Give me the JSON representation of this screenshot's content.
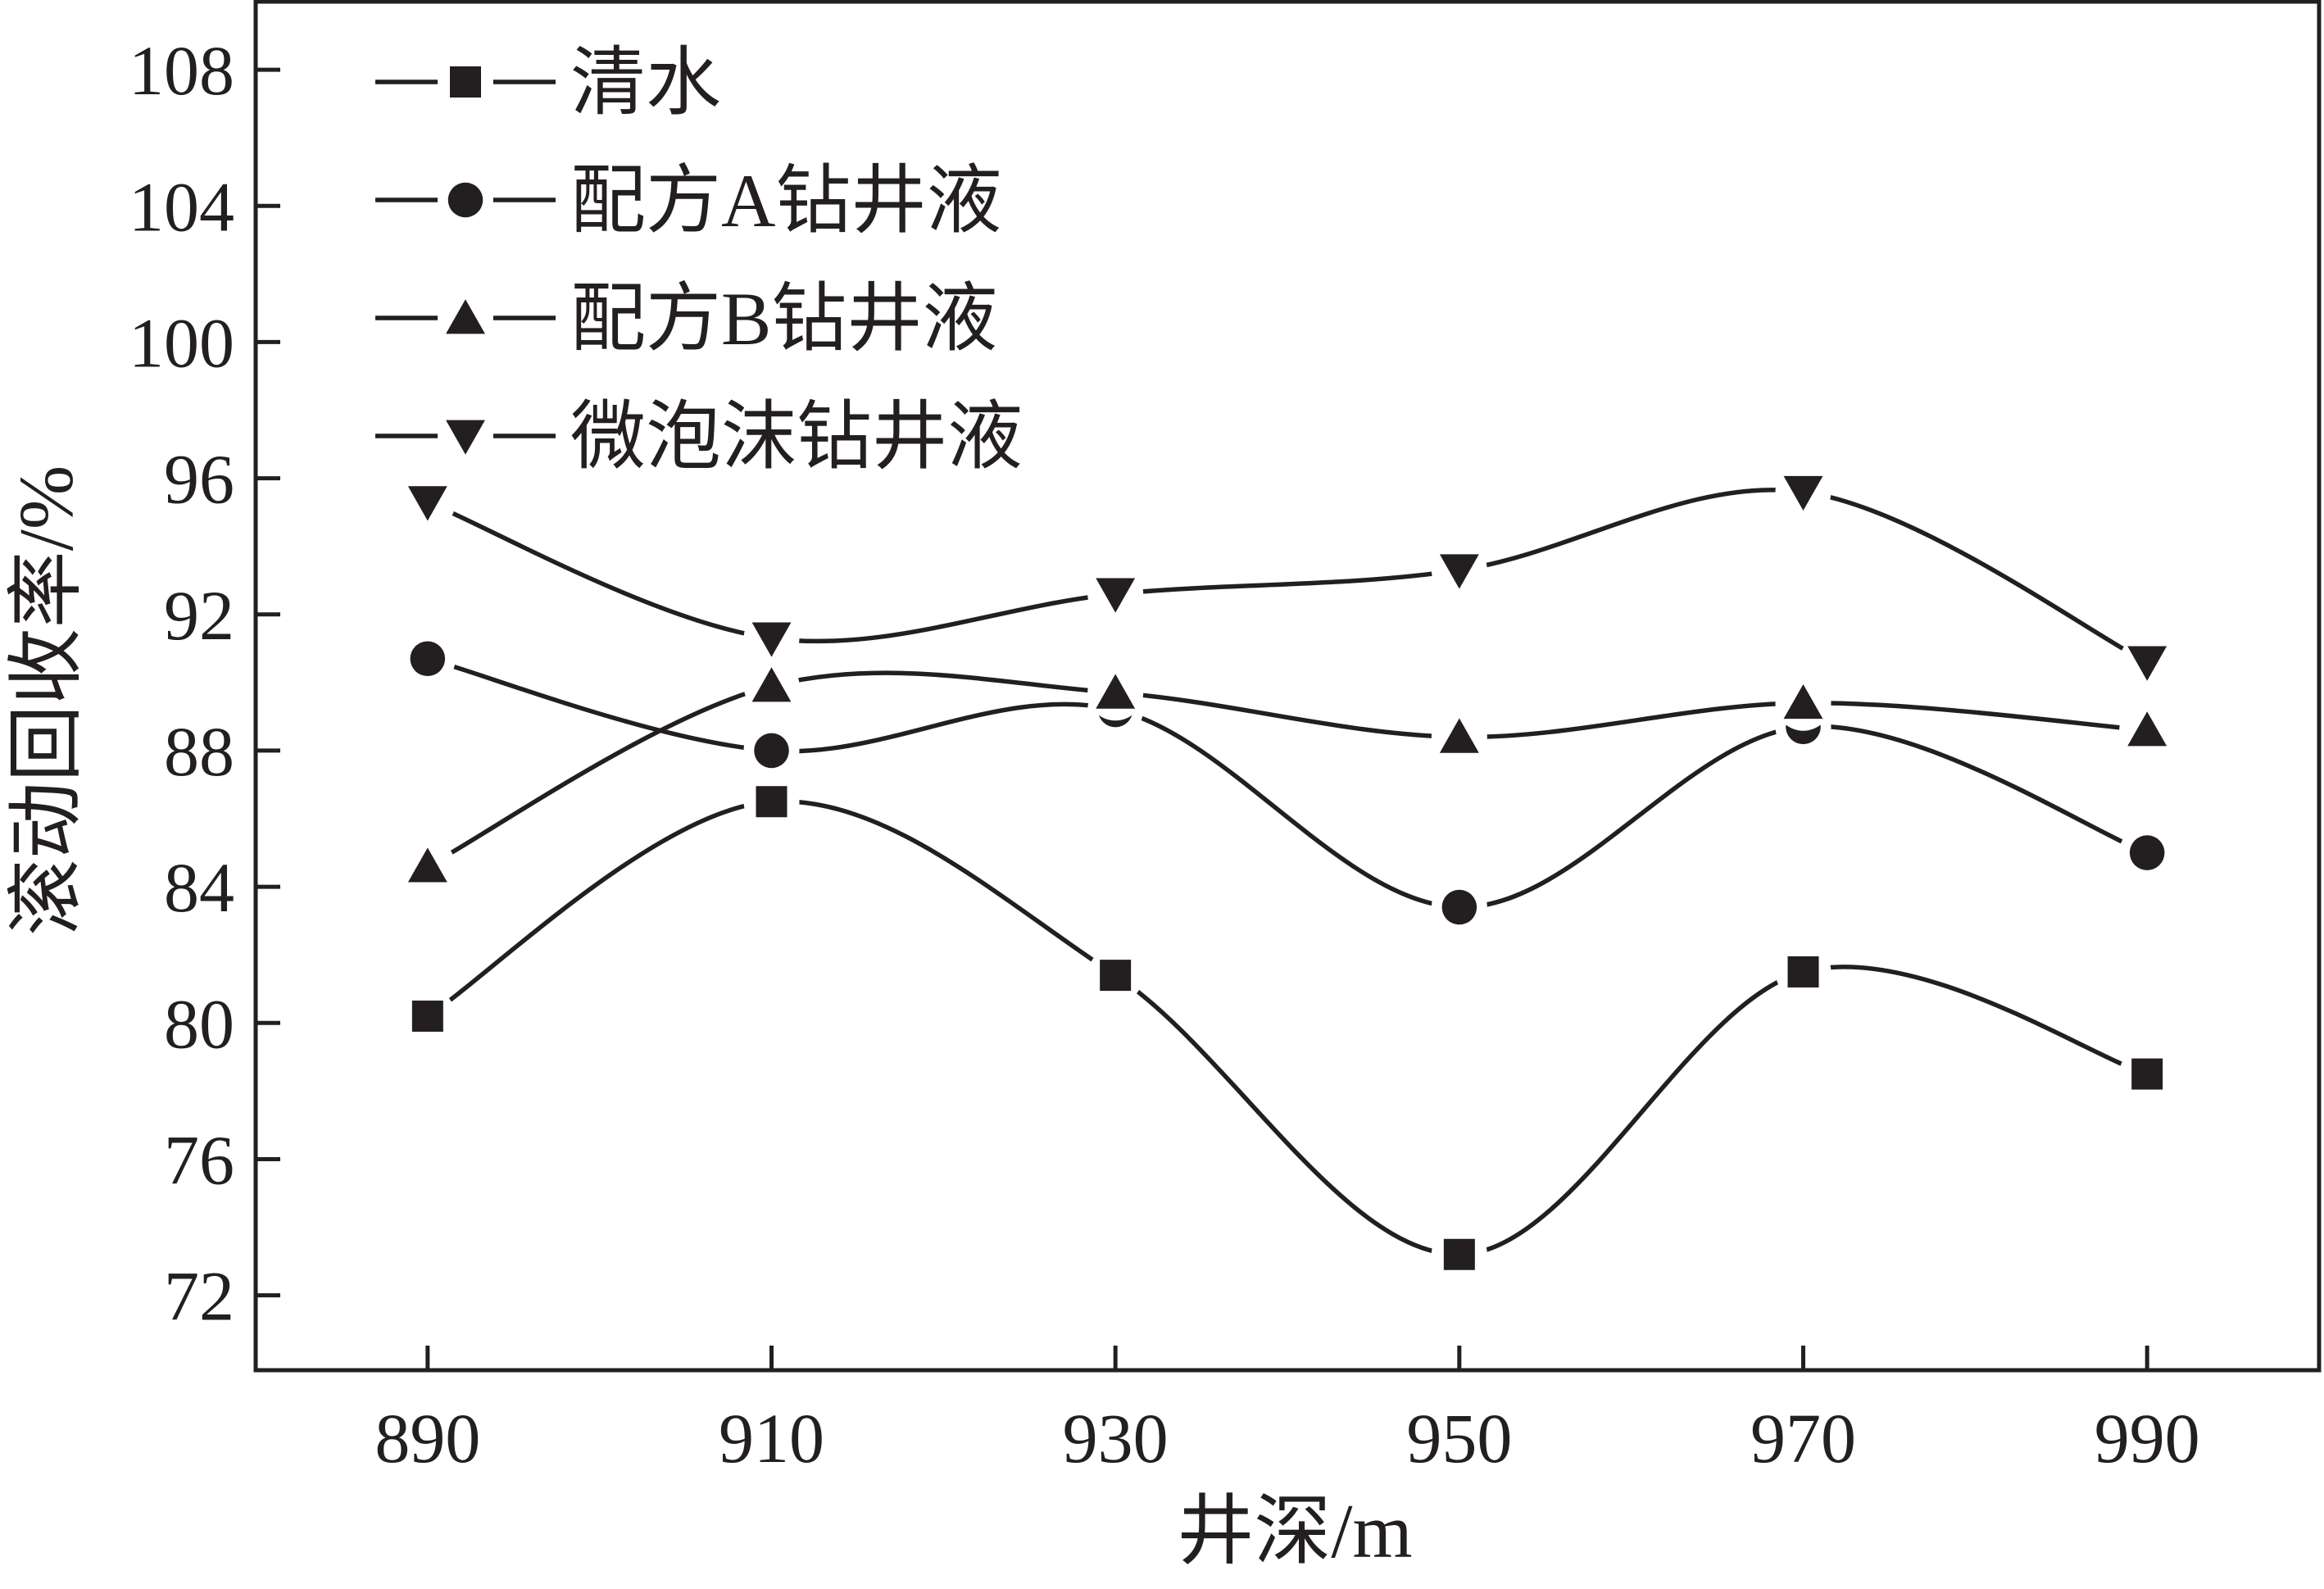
{
  "chart_data": {
    "type": "line",
    "title": "",
    "xlabel": "井深/m",
    "ylabel": "滚动回收率/%",
    "x": [
      890,
      910,
      930,
      950,
      970,
      990
    ],
    "xlim": [
      880,
      1000
    ],
    "ylim": [
      69.8,
      110
    ],
    "xticks": [
      "890",
      "910",
      "930",
      "950",
      "970",
      "990"
    ],
    "yticks": [
      "72",
      "76",
      "80",
      "84",
      "88",
      "92",
      "96",
      "100",
      "104",
      "108"
    ],
    "legend_position": "top-left",
    "grid": false,
    "smooth": true,
    "line_color": "#231f20",
    "series": [
      {
        "name": "清水",
        "marker": "square",
        "values": [
          80.2,
          86.5,
          81.4,
          73.2,
          81.5,
          78.5
        ]
      },
      {
        "name": "配方A钻井液",
        "marker": "circle",
        "values": [
          90.7,
          88.0,
          89.2,
          83.4,
          88.7,
          85.0
        ]
      },
      {
        "name": "配方B钻井液",
        "marker": "triangle-up",
        "values": [
          84.6,
          89.9,
          89.7,
          88.4,
          89.4,
          88.6
        ]
      },
      {
        "name": "微泡沫钻井液",
        "marker": "triangle-down",
        "values": [
          95.3,
          91.3,
          92.6,
          93.3,
          95.6,
          90.6
        ]
      }
    ]
  }
}
